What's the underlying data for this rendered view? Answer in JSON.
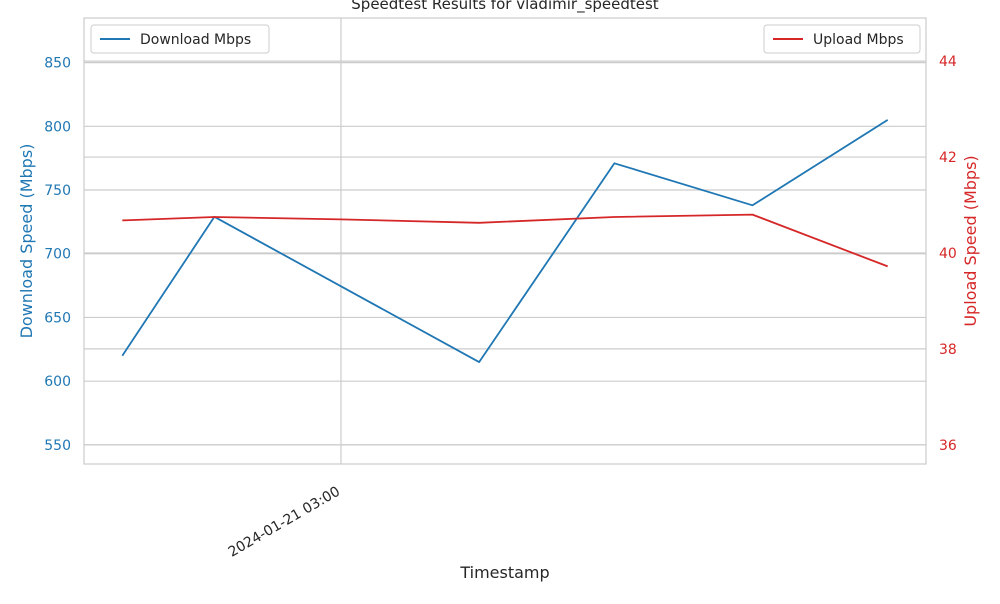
{
  "chart_data": {
    "type": "line",
    "title": "Speedtest Results for vladimir_speedtest",
    "xlabel": "Timestamp",
    "ylabel_left": "Download Speed (Mbps)",
    "ylabel_right": "Upload Speed (Mbps)",
    "x_tick_labels": [
      "2024-01-21 03:00"
    ],
    "x_tick_values": [
      "2024-01-21 03:00"
    ],
    "x": [
      "2024-01-21 01:44",
      "2024-01-21 02:16",
      "2024-01-21 03:00",
      "2024-01-21 03:48",
      "2024-01-21 04:35",
      "2024-01-21 05:23",
      "2024-01-21 06:10"
    ],
    "ylim_left": [
      535,
      885
    ],
    "ylim_right": [
      35.6,
      44.9
    ],
    "yticks_left": [
      550,
      600,
      650,
      700,
      750,
      800,
      850
    ],
    "yticks_right": [
      36,
      38,
      40,
      42,
      44
    ],
    "grid": true,
    "legend_left_position": "upper-left",
    "legend_right_position": "upper-right",
    "series": [
      {
        "name": "Download Mbps",
        "axis": "left",
        "color": "#1f77b4",
        "x": [
          "2024-01-21 01:44",
          "2024-01-21 02:16",
          "2024-01-21 03:48",
          "2024-01-21 04:35",
          "2024-01-21 05:23",
          "2024-01-21 06:10"
        ],
        "values": [
          620,
          729,
          615,
          771,
          738,
          805
        ]
      },
      {
        "name": "Upload Mbps",
        "axis": "right",
        "color": "#d62728",
        "x": [
          "2024-01-21 01:44",
          "2024-01-21 02:16",
          "2024-01-21 03:00",
          "2024-01-21 03:48",
          "2024-01-21 04:35",
          "2024-01-21 05:23",
          "2024-01-21 06:10"
        ],
        "values": [
          40.68,
          40.75,
          40.7,
          40.63,
          40.75,
          40.8,
          39.72
        ]
      }
    ]
  }
}
